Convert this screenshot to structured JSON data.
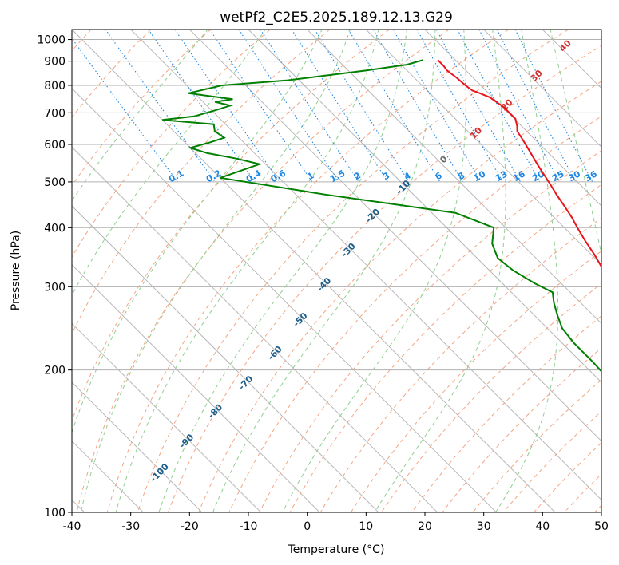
{
  "chart_data": {
    "type": "line",
    "subtype": "skew-T log-P diagram",
    "title": "wetPf2_C2E5.2025.189.12.13.G29",
    "xlabel": "Temperature (°C)",
    "ylabel": "Pressure (hPa)",
    "xlim": [
      -40,
      50
    ],
    "ylim": [
      1050,
      100
    ],
    "y_scale": "log",
    "x_ticks": [
      "-40",
      "-30",
      "-20",
      "-10",
      "0",
      "10",
      "20",
      "30",
      "40",
      "50"
    ],
    "y_ticks": [
      "100",
      "200",
      "300",
      "400",
      "500",
      "600",
      "700",
      "800",
      "900",
      "1000"
    ],
    "grid": true,
    "colors": {
      "temperature": "#e8151b",
      "dewpoint": "#008000",
      "isotherm": "#b8b8b8",
      "dry_adiabat": "#f4a582",
      "moist_adiabat": "#8fce8f",
      "mixing_ratio": "#1e88e5",
      "mixing_label": "#1e88e5",
      "dark_label": "#1f5f8b",
      "warm_label": "#d32f2f"
    },
    "series": [
      {
        "key": "temperature",
        "points": [
          [
            17.0,
            905
          ],
          [
            17.0,
            880
          ],
          [
            16.8,
            860
          ],
          [
            17.2,
            830
          ],
          [
            17.4,
            800
          ],
          [
            17.7,
            780
          ],
          [
            18.5,
            770
          ],
          [
            19.5,
            755
          ],
          [
            20.2,
            720
          ],
          [
            20.2,
            680
          ],
          [
            19.2,
            655
          ],
          [
            18.4,
            640
          ],
          [
            17.9,
            615
          ],
          [
            17.1,
            580
          ],
          [
            16.2,
            545
          ],
          [
            15.6,
            520
          ],
          [
            15.0,
            495
          ],
          [
            14.3,
            470
          ],
          [
            13.7,
            445
          ],
          [
            13.0,
            420
          ],
          [
            12.2,
            400
          ],
          [
            11.3,
            375
          ],
          [
            10.5,
            350
          ],
          [
            9.4,
            325
          ],
          [
            8.2,
            300
          ],
          [
            6.5,
            272
          ],
          [
            4.5,
            245
          ],
          [
            2.4,
            220
          ],
          [
            0.4,
            200
          ],
          [
            -0.6,
            190
          ],
          [
            -0.3,
            178
          ],
          [
            0.8,
            166
          ],
          [
            2.4,
            155
          ],
          [
            3.8,
            145
          ],
          [
            4.8,
            136
          ],
          [
            5.2,
            128
          ],
          [
            5.2,
            120
          ],
          [
            5.3,
            114
          ],
          [
            6.0,
            109
          ],
          [
            8.1,
            104
          ],
          [
            10.0,
            100
          ]
        ]
      },
      {
        "key": "dewpoint",
        "points": [
          [
            14.5,
            905
          ],
          [
            11.0,
            885
          ],
          [
            3.0,
            860
          ],
          [
            -12.0,
            820
          ],
          [
            -24.0,
            800
          ],
          [
            -31.0,
            770
          ],
          [
            -24.5,
            748
          ],
          [
            -28.0,
            738
          ],
          [
            -26.0,
            725
          ],
          [
            -29.5,
            708
          ],
          [
            -34.0,
            688
          ],
          [
            -40.0,
            676
          ],
          [
            -32.0,
            662
          ],
          [
            -33.0,
            640
          ],
          [
            -32.5,
            620
          ],
          [
            -36.0,
            605
          ],
          [
            -40.0,
            590
          ],
          [
            -38.0,
            575
          ],
          [
            -34.0,
            560
          ],
          [
            -31.0,
            545
          ],
          [
            -40.0,
            510
          ],
          [
            -25.0,
            470
          ],
          [
            -6.0,
            430
          ],
          [
            -2.0,
            400
          ],
          [
            -5.0,
            370
          ],
          [
            -6.5,
            345
          ],
          [
            -6.0,
            325
          ],
          [
            -4.5,
            305
          ],
          [
            -3.0,
            292
          ],
          [
            -4.5,
            278
          ],
          [
            -6.0,
            262
          ],
          [
            -7.5,
            245
          ],
          [
            -8.0,
            228
          ],
          [
            -8.0,
            208
          ],
          [
            -8.2,
            195
          ],
          [
            -8.8,
            182
          ],
          [
            -9.0,
            170
          ],
          [
            -8.5,
            160
          ],
          [
            -7.5,
            150
          ],
          [
            -6.0,
            140
          ],
          [
            -4.0,
            128
          ],
          [
            -2.0,
            118
          ],
          [
            -0.8,
            110
          ],
          [
            0.0,
            103
          ],
          [
            0.2,
            100
          ]
        ]
      }
    ],
    "dry_adiabats_c": [
      -80,
      -70,
      -60,
      -50,
      -40,
      -30,
      -20,
      -10,
      0,
      10,
      20,
      30,
      40,
      50,
      60,
      70,
      80,
      90,
      100,
      110,
      120,
      130,
      140,
      150,
      160,
      170,
      180,
      190,
      200
    ],
    "moist_adiabats_c": [
      -20,
      -10,
      0,
      5,
      10,
      15,
      20,
      25,
      30,
      35,
      40
    ],
    "mixing_ratios_gkg": [
      "0.1",
      "0.2",
      "0.4",
      "0.6",
      "1",
      "1.5",
      "2",
      "3",
      "4",
      "6",
      "8",
      "10",
      "13",
      "16",
      "20",
      "25",
      "30",
      "36"
    ],
    "adiabat_labels": [
      "-100",
      "-90",
      "-80",
      "-70",
      "-60",
      "-50",
      "-40",
      "-30",
      "-20",
      "-10",
      "0",
      "10",
      "20",
      "30",
      "40"
    ]
  }
}
